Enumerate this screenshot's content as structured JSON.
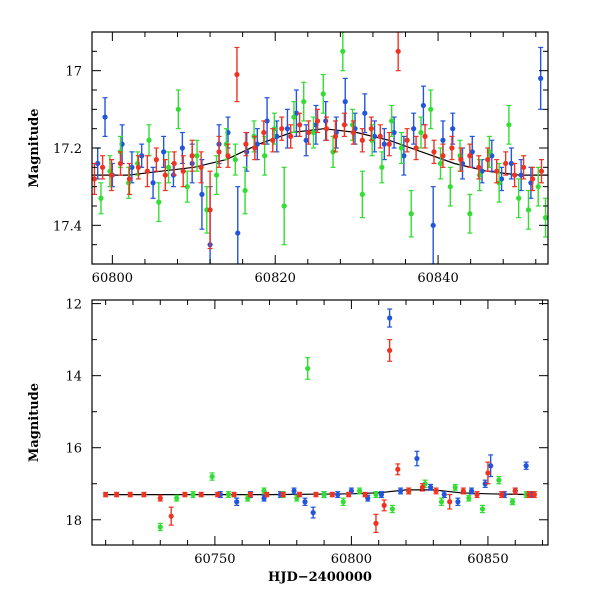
{
  "chart_data": [
    {
      "type": "scatter",
      "ylabel": "Magnitude",
      "xlabel": "",
      "xlim": [
        60797.5,
        60853.5
      ],
      "ylim": [
        17.5,
        16.9
      ],
      "y_inverted": true,
      "xticks": [
        60800,
        60820,
        60840
      ],
      "yticks": [
        17,
        17.2,
        17.4
      ],
      "yticks_display": [
        "17",
        "17.2",
        "17.4"
      ],
      "model_curve": {
        "color": "#000000",
        "x": [
          60797.5,
          60802,
          60806,
          60810,
          60814,
          60818,
          60822,
          60826,
          60830,
          60834,
          60838,
          60842,
          60846,
          60850,
          60853.5
        ],
        "y": [
          17.27,
          17.27,
          17.26,
          17.25,
          17.23,
          17.19,
          17.16,
          17.15,
          17.16,
          17.18,
          17.21,
          17.24,
          17.26,
          17.27,
          17.27
        ]
      },
      "series": [
        {
          "color": "#2255dd",
          "x": [
            60798.2,
            60799.1,
            60800.0,
            60801.2,
            60802.4,
            60803.6,
            60805.0,
            60806.3,
            60807.5,
            60808.6,
            60809.8,
            60811.0,
            60812.0,
            60813.1,
            60814.2,
            60815.4,
            60816.5,
            60817.8,
            60819.0,
            60820.2,
            60821.5,
            60822.6,
            60823.8,
            60825.0,
            60826.2,
            60827.5,
            60828.6,
            60829.8,
            60831.0,
            60832.2,
            60833.4,
            60834.6,
            60835.8,
            60837.0,
            60838.2,
            60839.4,
            60840.6,
            60841.8,
            60843.0,
            60844.2,
            60845.4,
            60846.6,
            60847.8,
            60849.0,
            60850.2,
            60851.4,
            60852.6
          ],
          "y": [
            17.24,
            17.12,
            17.27,
            17.19,
            17.25,
            17.22,
            17.29,
            17.21,
            17.27,
            17.2,
            17.24,
            17.32,
            17.45,
            17.19,
            17.16,
            17.42,
            17.21,
            17.19,
            17.13,
            17.17,
            17.15,
            17.11,
            17.18,
            17.14,
            17.13,
            17.16,
            17.08,
            17.15,
            17.11,
            17.17,
            17.19,
            17.16,
            17.22,
            17.15,
            17.09,
            17.4,
            17.18,
            17.15,
            17.24,
            17.21,
            17.26,
            17.22,
            17.28,
            17.24,
            17.27,
            17.29,
            17.02
          ],
          "err": [
            0.04,
            0.05,
            0.03,
            0.05,
            0.04,
            0.03,
            0.04,
            0.04,
            0.03,
            0.04,
            0.05,
            0.09,
            0.15,
            0.05,
            0.04,
            0.12,
            0.05,
            0.04,
            0.06,
            0.04,
            0.05,
            0.06,
            0.04,
            0.05,
            0.05,
            0.04,
            0.06,
            0.04,
            0.05,
            0.04,
            0.04,
            0.04,
            0.05,
            0.04,
            0.05,
            0.1,
            0.05,
            0.04,
            0.04,
            0.04,
            0.03,
            0.04,
            0.03,
            0.04,
            0.04,
            0.04,
            0.08
          ]
        },
        {
          "color": "#33dd33",
          "x": [
            60798.6,
            60799.7,
            60801.0,
            60802.0,
            60803.1,
            60804.5,
            60805.7,
            60806.9,
            60808.1,
            60809.2,
            60810.4,
            60811.6,
            60812.8,
            60814.0,
            60815.1,
            60816.3,
            60817.4,
            60818.7,
            60819.9,
            60821.1,
            60822.3,
            60823.5,
            60824.7,
            60825.9,
            60827.1,
            60828.3,
            60829.5,
            60830.7,
            60831.9,
            60833.1,
            60834.3,
            60835.5,
            60836.7,
            60837.9,
            60839.1,
            60840.3,
            60841.5,
            60842.7,
            60843.9,
            60845.1,
            60846.3,
            60847.5,
            60848.7,
            60849.9,
            60851.1,
            60852.3,
            60853.2
          ],
          "y": [
            17.33,
            17.26,
            17.21,
            17.29,
            17.24,
            17.18,
            17.34,
            17.25,
            17.1,
            17.3,
            17.22,
            17.36,
            17.27,
            17.19,
            17.23,
            17.31,
            17.17,
            17.22,
            17.15,
            17.35,
            17.12,
            17.08,
            17.16,
            17.06,
            17.21,
            16.95,
            17.14,
            17.32,
            17.18,
            17.25,
            17.13,
            17.2,
            17.37,
            17.16,
            17.1,
            17.24,
            17.3,
            17.22,
            17.37,
            17.27,
            17.21,
            17.29,
            17.14,
            17.33,
            17.36,
            17.3,
            17.38
          ],
          "err": [
            0.04,
            0.04,
            0.04,
            0.04,
            0.03,
            0.04,
            0.05,
            0.04,
            0.05,
            0.04,
            0.04,
            0.06,
            0.05,
            0.04,
            0.04,
            0.06,
            0.04,
            0.05,
            0.04,
            0.1,
            0.04,
            0.05,
            0.04,
            0.05,
            0.04,
            0.05,
            0.04,
            0.06,
            0.04,
            0.04,
            0.04,
            0.04,
            0.06,
            0.04,
            0.05,
            0.04,
            0.05,
            0.04,
            0.05,
            0.04,
            0.04,
            0.05,
            0.05,
            0.05,
            0.05,
            0.05,
            0.05
          ]
        },
        {
          "color": "#ee3322",
          "x": [
            60797.8,
            60798.8,
            60799.9,
            60801.0,
            60802.1,
            60803.2,
            60804.3,
            60805.4,
            60806.5,
            60807.6,
            60808.7,
            60809.8,
            60810.9,
            60812.0,
            60813.1,
            60814.2,
            60815.3,
            60816.4,
            60817.5,
            60818.6,
            60819.7,
            60820.8,
            60821.9,
            60823.0,
            60824.1,
            60825.2,
            60826.3,
            60827.4,
            60828.5,
            60829.6,
            60830.7,
            60831.8,
            60832.9,
            60834.0,
            60835.1,
            60836.2,
            60837.3,
            60838.4,
            60839.5,
            60840.6,
            60841.7,
            60842.8,
            60843.9,
            60845.0,
            60846.1,
            60847.2,
            60848.3,
            60849.4,
            60850.5,
            60851.6,
            60852.7
          ],
          "y": [
            17.28,
            17.25,
            17.27,
            17.24,
            17.28,
            17.25,
            17.26,
            17.23,
            17.27,
            17.24,
            17.26,
            17.22,
            17.25,
            17.36,
            17.21,
            17.22,
            17.01,
            17.19,
            17.2,
            17.16,
            17.18,
            17.15,
            17.17,
            17.14,
            17.16,
            17.13,
            17.15,
            17.17,
            17.14,
            17.16,
            17.18,
            17.15,
            17.17,
            17.19,
            16.95,
            17.18,
            17.2,
            17.17,
            17.21,
            17.22,
            17.2,
            17.23,
            17.22,
            17.25,
            17.23,
            17.26,
            17.24,
            17.27,
            17.25,
            17.28,
            17.26
          ],
          "err": [
            0.04,
            0.03,
            0.04,
            0.03,
            0.04,
            0.03,
            0.04,
            0.03,
            0.04,
            0.03,
            0.04,
            0.04,
            0.04,
            0.1,
            0.04,
            0.03,
            0.07,
            0.03,
            0.03,
            0.03,
            0.03,
            0.03,
            0.03,
            0.03,
            0.03,
            0.03,
            0.03,
            0.04,
            0.03,
            0.03,
            0.03,
            0.03,
            0.03,
            0.03,
            0.05,
            0.03,
            0.03,
            0.03,
            0.03,
            0.03,
            0.03,
            0.03,
            0.03,
            0.03,
            0.03,
            0.03,
            0.03,
            0.03,
            0.03,
            0.03,
            0.03
          ]
        }
      ]
    },
    {
      "type": "scatter",
      "ylabel": "Magnitude",
      "xlabel": "HJD−2400000",
      "xlim": [
        60705,
        60872
      ],
      "ylim": [
        18.7,
        11.9
      ],
      "y_inverted": true,
      "xticks": [
        60750,
        60800,
        60850
      ],
      "yticks": [
        12,
        14,
        16,
        18
      ],
      "yticks_display": [
        "12",
        "14",
        "16",
        "18"
      ],
      "model_curve": {
        "color": "#000000",
        "x": [
          60710,
          60740,
          60770,
          60800,
          60810,
          60820,
          60830,
          60840,
          60850,
          60867
        ],
        "y": [
          17.3,
          17.3,
          17.3,
          17.28,
          17.25,
          17.17,
          17.17,
          17.25,
          17.28,
          17.3
        ]
      },
      "series": [
        {
          "color": "#2255dd",
          "x": [
            60752,
            60758,
            60763,
            60768,
            60774,
            60779,
            60783,
            60786,
            60790,
            60795,
            60800,
            60806,
            60811,
            60814,
            60818,
            60824,
            60829,
            60834,
            60839,
            60844,
            60849,
            60851,
            60856,
            60860,
            60864,
            60866
          ],
          "y": [
            17.3,
            17.5,
            17.3,
            17.4,
            17.3,
            17.2,
            17.5,
            17.8,
            17.3,
            17.3,
            17.2,
            17.4,
            17.3,
            12.4,
            17.2,
            16.3,
            17.1,
            17.3,
            17.5,
            17.2,
            17.0,
            16.5,
            17.3,
            17.2,
            16.5,
            17.3
          ],
          "err": [
            0.08,
            0.1,
            0.08,
            0.08,
            0.08,
            0.08,
            0.1,
            0.15,
            0.08,
            0.08,
            0.08,
            0.08,
            0.08,
            0.25,
            0.08,
            0.2,
            0.08,
            0.08,
            0.1,
            0.08,
            0.1,
            0.3,
            0.08,
            0.08,
            0.1,
            0.08
          ]
        },
        {
          "color": "#33dd33",
          "x": [
            60730,
            60736,
            60742,
            60749,
            60755,
            60762,
            60768,
            60775,
            60780,
            60784,
            60790,
            60797,
            60803,
            60809,
            60815,
            60821,
            60827,
            60833,
            60838,
            60843,
            60848,
            60854,
            60859,
            60864
          ],
          "y": [
            18.2,
            17.4,
            17.3,
            16.8,
            17.3,
            17.4,
            17.2,
            17.3,
            17.4,
            13.8,
            17.3,
            17.5,
            17.2,
            17.3,
            17.7,
            17.2,
            17.0,
            17.5,
            17.1,
            17.4,
            17.7,
            16.9,
            17.5,
            17.3
          ],
          "err": [
            0.1,
            0.08,
            0.08,
            0.1,
            0.08,
            0.08,
            0.08,
            0.08,
            0.08,
            0.3,
            0.08,
            0.1,
            0.08,
            0.08,
            0.1,
            0.08,
            0.1,
            0.1,
            0.08,
            0.08,
            0.1,
            0.1,
            0.08,
            0.08
          ]
        },
        {
          "color": "#ee3322",
          "x": [
            60710,
            60714,
            60719,
            60724,
            60730,
            60734,
            60739,
            60745,
            60751,
            60757,
            60763,
            60769,
            60775,
            60781,
            60787,
            60793,
            60799,
            60805,
            60809,
            60812,
            60814,
            60817,
            60821,
            60826,
            60831,
            60836,
            60841,
            60846,
            60850,
            60855,
            60860,
            60865,
            60867
          ],
          "y": [
            17.3,
            17.3,
            17.3,
            17.3,
            17.4,
            17.9,
            17.3,
            17.3,
            17.3,
            17.3,
            17.3,
            17.3,
            17.3,
            17.3,
            17.3,
            17.3,
            17.3,
            17.3,
            18.1,
            17.6,
            13.3,
            16.6,
            17.2,
            17.1,
            17.2,
            17.5,
            17.2,
            17.3,
            16.7,
            17.3,
            17.2,
            17.3,
            17.3
          ],
          "err": [
            0.06,
            0.06,
            0.06,
            0.06,
            0.08,
            0.25,
            0.06,
            0.06,
            0.06,
            0.06,
            0.06,
            0.06,
            0.06,
            0.06,
            0.06,
            0.06,
            0.06,
            0.06,
            0.25,
            0.15,
            0.3,
            0.15,
            0.08,
            0.1,
            0.08,
            0.2,
            0.08,
            0.08,
            0.3,
            0.08,
            0.08,
            0.08,
            0.08
          ]
        }
      ]
    }
  ]
}
